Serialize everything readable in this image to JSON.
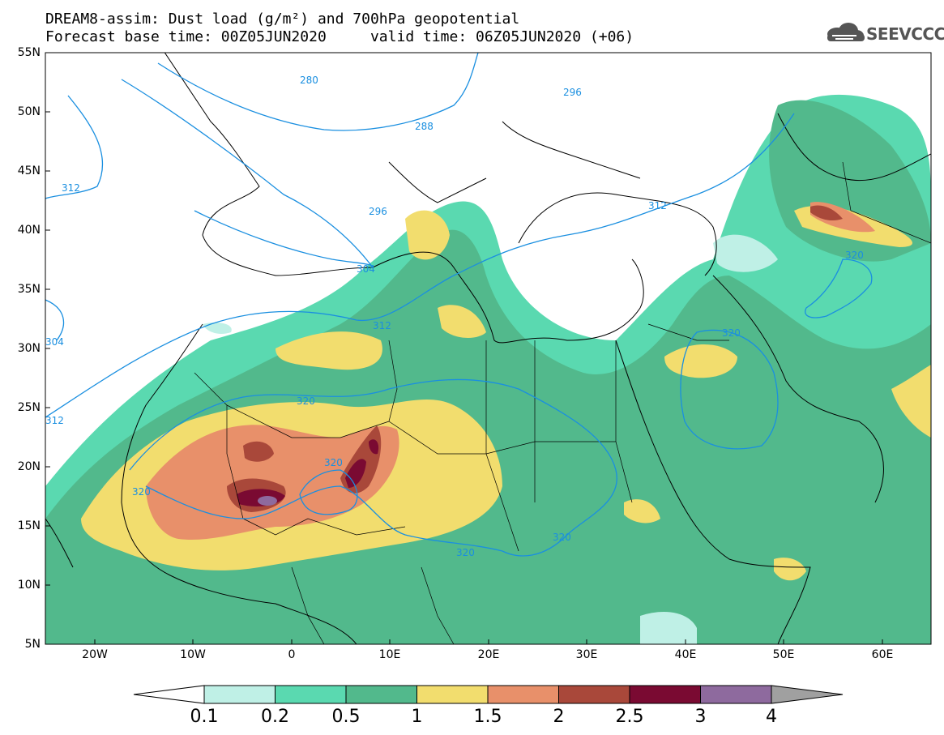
{
  "title_line1": "DREAM8-assim: Dust load (g/m²) and 700hPa geopotential",
  "title_line2": "Forecast base time: 00Z05JUN2020     valid time: 06Z05JUN2020 (+06)",
  "logo_text": "SEEVCCC",
  "lat_labels": [
    "55N",
    "50N",
    "45N",
    "40N",
    "35N",
    "30N",
    "25N",
    "20N",
    "15N",
    "10N",
    "5N"
  ],
  "lon_labels": [
    "20W",
    "10W",
    "0",
    "10E",
    "20E",
    "30E",
    "40E",
    "50E",
    "60E"
  ],
  "contour_labels": [
    "280",
    "296",
    "288",
    "312",
    "296",
    "304",
    "312",
    "312",
    "320",
    "320",
    "320",
    "320",
    "320",
    "320",
    "320",
    "304",
    "312",
    "320"
  ],
  "colorbar": {
    "ticks": [
      "0.1",
      "0.2",
      "0.5",
      "1",
      "1.5",
      "2",
      "2.5",
      "3",
      "4"
    ],
    "colors": [
      "#bff0e6",
      "#5ad9b0",
      "#52b98c",
      "#f2dd6e",
      "#e8906a",
      "#a9483a",
      "#7a0a32",
      "#8e6a9e"
    ],
    "under_color": "#ffffff",
    "over_color": "#a0a0a0"
  },
  "dust_colors": {
    "level1": "#bff0e6",
    "level2": "#5ad9b0",
    "level3": "#52b98c",
    "level4": "#f2dd6e",
    "level5": "#e8906a",
    "level6": "#a9483a",
    "level7": "#7a0a32",
    "level8": "#8e6a9e"
  },
  "contour_color": "#1a8fe0"
}
